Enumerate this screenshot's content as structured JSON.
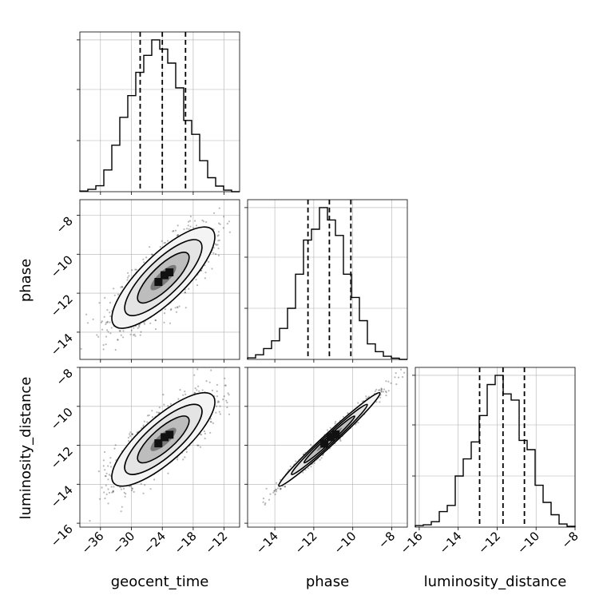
{
  "chart_data": {
    "type": "corner",
    "parameters": [
      "geocent_time",
      "phase",
      "luminosity_distance"
    ],
    "ranges": {
      "geocent_time": [
        -40,
        -9
      ],
      "phase": [
        -15.4,
        -7.2
      ],
      "luminosity_distance": [
        -16.2,
        -8
      ]
    },
    "ticks": {
      "geocent_time": [
        -36,
        -30,
        -24,
        -18,
        -12
      ],
      "phase": [
        -14,
        -12,
        -10,
        -8
      ],
      "luminosity_distance": [
        -16,
        -14,
        -12,
        -10,
        -8
      ]
    },
    "tick_labels": {
      "geocent_time": [
        "−36",
        "−30",
        "−24",
        "−18",
        "−12"
      ],
      "phase": [
        "−14",
        "−12",
        "−10",
        "−8"
      ],
      "luminosity_distance": [
        "−16",
        "−14",
        "−12",
        "−10",
        "−8"
      ]
    },
    "marginals": [
      {
        "parameter": "geocent_time",
        "quantiles": [
          -28.3,
          -24.0,
          -19.5
        ],
        "bin_edges": [
          -40.0,
          -38.45,
          -36.9,
          -35.35,
          -33.8,
          -32.25,
          -30.7,
          -29.15,
          -27.6,
          -26.05,
          -24.5,
          -22.95,
          -21.4,
          -19.85,
          -18.3,
          -16.75,
          -15.2,
          -13.65,
          -12.1,
          -10.55,
          -9.0
        ],
        "counts": [
          0.004,
          0.015,
          0.038,
          0.14,
          0.3,
          0.48,
          0.62,
          0.77,
          0.88,
          0.98,
          0.92,
          0.83,
          0.67,
          0.46,
          0.37,
          0.2,
          0.09,
          0.036,
          0.01,
          0.0
        ]
      },
      {
        "parameter": "phase",
        "quantiles": [
          -12.3,
          -11.2,
          -10.1
        ],
        "bin_edges": [
          -15.4,
          -14.99,
          -14.58,
          -14.17,
          -13.76,
          -13.35,
          -12.94,
          -12.53,
          -12.12,
          -11.71,
          -11.3,
          -10.89,
          -10.48,
          -10.07,
          -9.66,
          -9.25,
          -8.84,
          -8.43,
          -8.02,
          -7.61,
          -7.2
        ],
        "counts": [
          0.01,
          0.03,
          0.07,
          0.12,
          0.2,
          0.33,
          0.55,
          0.77,
          0.84,
          0.98,
          0.9,
          0.8,
          0.55,
          0.4,
          0.25,
          0.1,
          0.05,
          0.02,
          0.008,
          0.0
        ]
      },
      {
        "parameter": "luminosity_distance",
        "quantiles": [
          -12.9,
          -11.7,
          -10.6
        ],
        "bin_edges": [
          -16.2,
          -15.79,
          -15.38,
          -14.97,
          -14.56,
          -14.15,
          -13.74,
          -13.33,
          -12.92,
          -12.51,
          -12.1,
          -11.69,
          -11.28,
          -10.87,
          -10.46,
          -10.05,
          -9.64,
          -9.23,
          -8.82,
          -8.41,
          -8.0
        ],
        "counts": [
          0.01,
          0.015,
          0.035,
          0.1,
          0.14,
          0.33,
          0.44,
          0.55,
          0.72,
          0.92,
          0.98,
          0.86,
          0.82,
          0.56,
          0.5,
          0.27,
          0.16,
          0.08,
          0.02,
          0.005
        ]
      }
    ],
    "pairs": [
      {
        "x": "geocent_time",
        "y": "phase",
        "mean": [
          -23.8,
          -11.2
        ],
        "sd": [
          5.0,
          1.3
        ],
        "corr": 0.8,
        "contour_levels_sigma": [
          0.5,
          1.0,
          1.5,
          2.0
        ]
      },
      {
        "x": "geocent_time",
        "y": "luminosity_distance",
        "mean": [
          -23.8,
          -11.7
        ],
        "sd": [
          5.0,
          1.2
        ],
        "corr": 0.8,
        "contour_levels_sigma": [
          0.5,
          1.0,
          1.5,
          2.0
        ]
      },
      {
        "x": "phase",
        "y": "luminosity_distance",
        "mean": [
          -11.2,
          -11.7
        ],
        "sd": [
          1.3,
          1.2
        ],
        "corr": 0.985,
        "contour_levels_sigma": [
          0.5,
          1.0,
          1.5,
          2.0
        ]
      }
    ],
    "grid": true,
    "colors": {
      "line": "#000000",
      "grid": "#b0b0b0",
      "points": "#000000"
    }
  },
  "labels": {
    "x0": "geocent_time",
    "x1": "phase",
    "x2": "luminosity_distance",
    "y1": "phase",
    "y2": "luminosity_distance"
  }
}
